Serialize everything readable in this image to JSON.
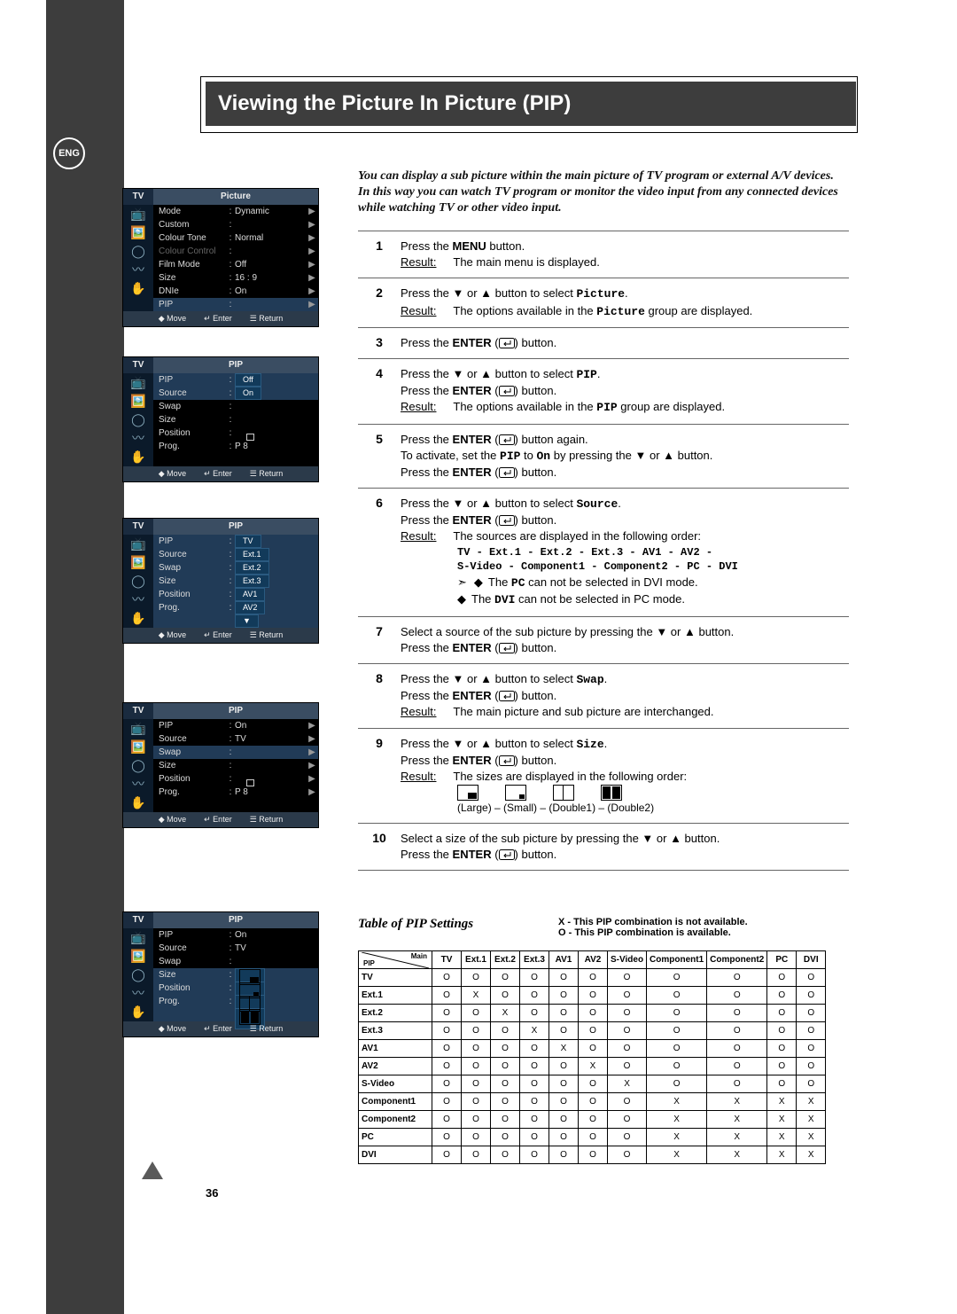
{
  "title": "Viewing the Picture In Picture (PIP)",
  "eng": "ENG",
  "pagenum": "36",
  "intro": "You can display a sub picture within the main picture of TV program or external A/V devices. In this way you can watch TV program or monitor the video input from any connected devices while watching TV or other video input.",
  "osd": {
    "footer": {
      "move": "Move",
      "enter": "Enter",
      "return": "Return"
    },
    "tv_label": "TV",
    "picture_title": "Picture",
    "pip_title": "PIP",
    "panel1": {
      "rows": [
        {
          "label": "Mode",
          "value": "Dynamic",
          "arrow": true
        },
        {
          "label": "Custom",
          "value": "",
          "arrow": true
        },
        {
          "label": "Colour Tone",
          "value": "Normal",
          "arrow": true
        },
        {
          "label": "Colour Control",
          "value": "",
          "arrow": true,
          "dim": true
        },
        {
          "label": "Film Mode",
          "value": "Off",
          "arrow": true
        },
        {
          "label": "Size",
          "value": "16 : 9",
          "arrow": true
        },
        {
          "label": "DNIe",
          "value": "On",
          "arrow": true
        },
        {
          "label": "PIP",
          "value": "",
          "arrow": true,
          "hl": true
        }
      ]
    },
    "panel2": {
      "rows": [
        {
          "label": "PIP",
          "valbox": "Off",
          "hl": true
        },
        {
          "label": "Source",
          "valbox": "On",
          "hl": true
        },
        {
          "label": "Swap"
        },
        {
          "label": "Size",
          "icon": "large"
        },
        {
          "label": "Position",
          "icon": "pos"
        },
        {
          "label": "Prog.",
          "value": "P 8"
        }
      ]
    },
    "panel3": {
      "rows": [
        {
          "label": "PIP",
          "valbox": "TV",
          "hl": true
        },
        {
          "label": "Source",
          "valbox": "Ext.1",
          "hl": true
        },
        {
          "label": "Swap",
          "valbox": "Ext.2",
          "hl": true
        },
        {
          "label": "Size",
          "valbox": "Ext.3",
          "hl": true
        },
        {
          "label": "Position",
          "valbox": "AV1",
          "hl": true
        },
        {
          "label": "Prog.",
          "valbox": "AV2",
          "hl": true
        },
        {
          "label": "",
          "valbox": "▼",
          "hl": true
        }
      ]
    },
    "panel4": {
      "rows": [
        {
          "label": "PIP",
          "value": "On",
          "arrow": true
        },
        {
          "label": "Source",
          "value": "TV",
          "arrow": true
        },
        {
          "label": "Swap",
          "value": "",
          "arrow": true,
          "hl": true
        },
        {
          "label": "Size",
          "icon": "large",
          "arrow": true
        },
        {
          "label": "Position",
          "icon": "pos",
          "arrow": true
        },
        {
          "label": "Prog.",
          "value": "P 8",
          "arrow": true
        }
      ]
    },
    "panel5": {
      "rows": [
        {
          "label": "PIP",
          "value": "On"
        },
        {
          "label": "Source",
          "value": "TV"
        },
        {
          "label": "Swap"
        },
        {
          "label": "Size",
          "valbox_icon": "large",
          "hl": true
        },
        {
          "label": "Position",
          "valbox_icon": "small",
          "hl": true
        },
        {
          "label": "Prog.",
          "valbox_icon": "double1",
          "hl": true
        },
        {
          "label": "",
          "valbox_icon": "double2",
          "hl": true
        }
      ]
    }
  },
  "steps": [
    {
      "n": "1",
      "lines": [
        {
          "text": "Press the <b>MENU</b> button."
        },
        {
          "lead": "Result:",
          "text": "The main menu is displayed."
        }
      ]
    },
    {
      "n": "2",
      "lines": [
        {
          "text": "Press the ▼ or ▲ button to select <tt>Picture</tt>."
        },
        {
          "lead": "Result:",
          "text": "The options available in the <tt>Picture</tt> group are displayed."
        }
      ]
    },
    {
      "n": "3",
      "lines": [
        {
          "text": "Press the <b>ENTER</b> (<enter/>) button."
        }
      ]
    },
    {
      "n": "4",
      "lines": [
        {
          "text": "Press the ▼ or ▲ button to select <tt>PIP</tt>."
        },
        {
          "text": "Press the <b>ENTER</b> (<enter/>) button."
        },
        {
          "lead": "Result:",
          "text": "The options available in the <tt>PIP</tt> group are displayed."
        }
      ]
    },
    {
      "n": "5",
      "lines": [
        {
          "text": "Press the <b>ENTER</b> (<enter/>) button again."
        },
        {
          "text": "To activate, set the <tt>PIP</tt> to <tt>On</tt> by pressing the ▼ or ▲ button."
        },
        {
          "text": "Press the <b>ENTER</b> (<enter/>) button."
        }
      ]
    },
    {
      "n": "6",
      "lines": [
        {
          "text": "Press the ▼ or ▲ button to select <tt>Source</tt>."
        },
        {
          "text": "Press the <b>ENTER</b> (<enter/>) button."
        },
        {
          "lead": "Result:",
          "text": "The sources are displayed in the following order:"
        },
        {
          "src": "TV - Ext.1 - Ext.2 - Ext.3 - AV1 - AV2 -\nS-Video - Component1 - Component2 - PC - DVI"
        },
        {
          "note": "➣",
          "bul": true,
          "text": "The <tt>PC</tt> can not be selected in DVI mode."
        },
        {
          "bul": true,
          "text": "The <tt>DVI</tt> can not be selected in PC mode."
        }
      ]
    },
    {
      "n": "7",
      "lines": [
        {
          "text": "Select a source of the sub picture by pressing the ▼ or ▲ button."
        },
        {
          "text": "Press the <b>ENTER</b> (<enter/>) button."
        }
      ]
    },
    {
      "n": "8",
      "lines": [
        {
          "text": "Press the ▼ or ▲ button to select <tt>Swap</tt>."
        },
        {
          "text": "Press the <b>ENTER</b> (<enter/>) button."
        },
        {
          "lead": "Result:",
          "text": "The main picture and sub picture are interchanged."
        }
      ]
    },
    {
      "n": "9",
      "lines": [
        {
          "text": "Press the ▼ or ▲ button to select <tt>Size</tt>."
        },
        {
          "text": "Press the <b>ENTER</b> (<enter/>) button."
        },
        {
          "lead": "Result:",
          "text": "The sizes are displayed in the following order:"
        },
        {
          "sizes": true
        },
        {
          "size_labels": "(Large) – (Small) – (Double1) – (Double2)"
        }
      ]
    },
    {
      "n": "10",
      "lines": [
        {
          "text": "Select a size of the sub picture by pressing the ▼ or ▲ button."
        },
        {
          "text": "Press the <b>ENTER</b> (<enter/>) button."
        }
      ]
    }
  ],
  "table": {
    "title": "Table of PIP Settings",
    "note_x": "X - This PIP combination is not available.",
    "note_o": "O - This PIP combination is available.",
    "main_label": "Main",
    "pip_label": "PIP",
    "headers": [
      "TV",
      "Ext.1",
      "Ext.2",
      "Ext.3",
      "AV1",
      "AV2",
      "S-Video",
      "Component1",
      "Component2",
      "PC",
      "DVI"
    ],
    "rows": [
      {
        "h": "TV",
        "cells": [
          "O",
          "O",
          "O",
          "O",
          "O",
          "O",
          "O",
          "O",
          "O",
          "O",
          "O"
        ]
      },
      {
        "h": "Ext.1",
        "cells": [
          "O",
          "X",
          "O",
          "O",
          "O",
          "O",
          "O",
          "O",
          "O",
          "O",
          "O"
        ]
      },
      {
        "h": "Ext.2",
        "cells": [
          "O",
          "O",
          "X",
          "O",
          "O",
          "O",
          "O",
          "O",
          "O",
          "O",
          "O"
        ]
      },
      {
        "h": "Ext.3",
        "cells": [
          "O",
          "O",
          "O",
          "X",
          "O",
          "O",
          "O",
          "O",
          "O",
          "O",
          "O"
        ]
      },
      {
        "h": "AV1",
        "cells": [
          "O",
          "O",
          "O",
          "O",
          "X",
          "O",
          "O",
          "O",
          "O",
          "O",
          "O"
        ]
      },
      {
        "h": "AV2",
        "cells": [
          "O",
          "O",
          "O",
          "O",
          "O",
          "X",
          "O",
          "O",
          "O",
          "O",
          "O"
        ]
      },
      {
        "h": "S-Video",
        "cells": [
          "O",
          "O",
          "O",
          "O",
          "O",
          "O",
          "X",
          "O",
          "O",
          "O",
          "O"
        ]
      },
      {
        "h": "Component1",
        "cells": [
          "O",
          "O",
          "O",
          "O",
          "O",
          "O",
          "O",
          "X",
          "X",
          "X",
          "X"
        ]
      },
      {
        "h": "Component2",
        "cells": [
          "O",
          "O",
          "O",
          "O",
          "O",
          "O",
          "O",
          "X",
          "X",
          "X",
          "X"
        ]
      },
      {
        "h": "PC",
        "cells": [
          "O",
          "O",
          "O",
          "O",
          "O",
          "O",
          "O",
          "X",
          "X",
          "X",
          "X"
        ]
      },
      {
        "h": "DVI",
        "cells": [
          "O",
          "O",
          "O",
          "O",
          "O",
          "O",
          "O",
          "X",
          "X",
          "X",
          "X"
        ]
      }
    ]
  }
}
